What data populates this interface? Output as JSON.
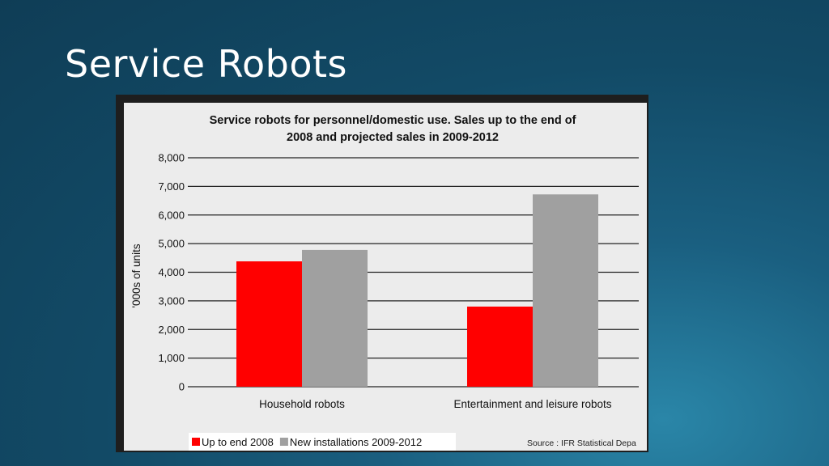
{
  "slide": {
    "title": "Service Robots"
  },
  "chart_data": {
    "type": "bar",
    "title_line1": "Service robots for personnel/domestic use.  Sales up to the end of",
    "title_line2": "2008 and projected sales in 2009-2012",
    "ylabel": "'000s of units",
    "ylim": [
      0,
      8000
    ],
    "yticks": [
      "8,000",
      "7,000",
      "6,000",
      "5,000",
      "4,000",
      "3,000",
      "2,000",
      "1,000",
      "0"
    ],
    "categories": [
      "Household robots",
      "Entertainment and leisure robots"
    ],
    "series": [
      {
        "name": "Up to end 2008",
        "values": [
          4380,
          2800
        ],
        "color": "#ff0000"
      },
      {
        "name": "New installations 2009-2012",
        "values": [
          4780,
          6720
        ],
        "color": "#a0a0a0"
      }
    ],
    "source": "Source : IFR Statistical Depa",
    "grid": true,
    "legend_position": "bottom-left"
  }
}
